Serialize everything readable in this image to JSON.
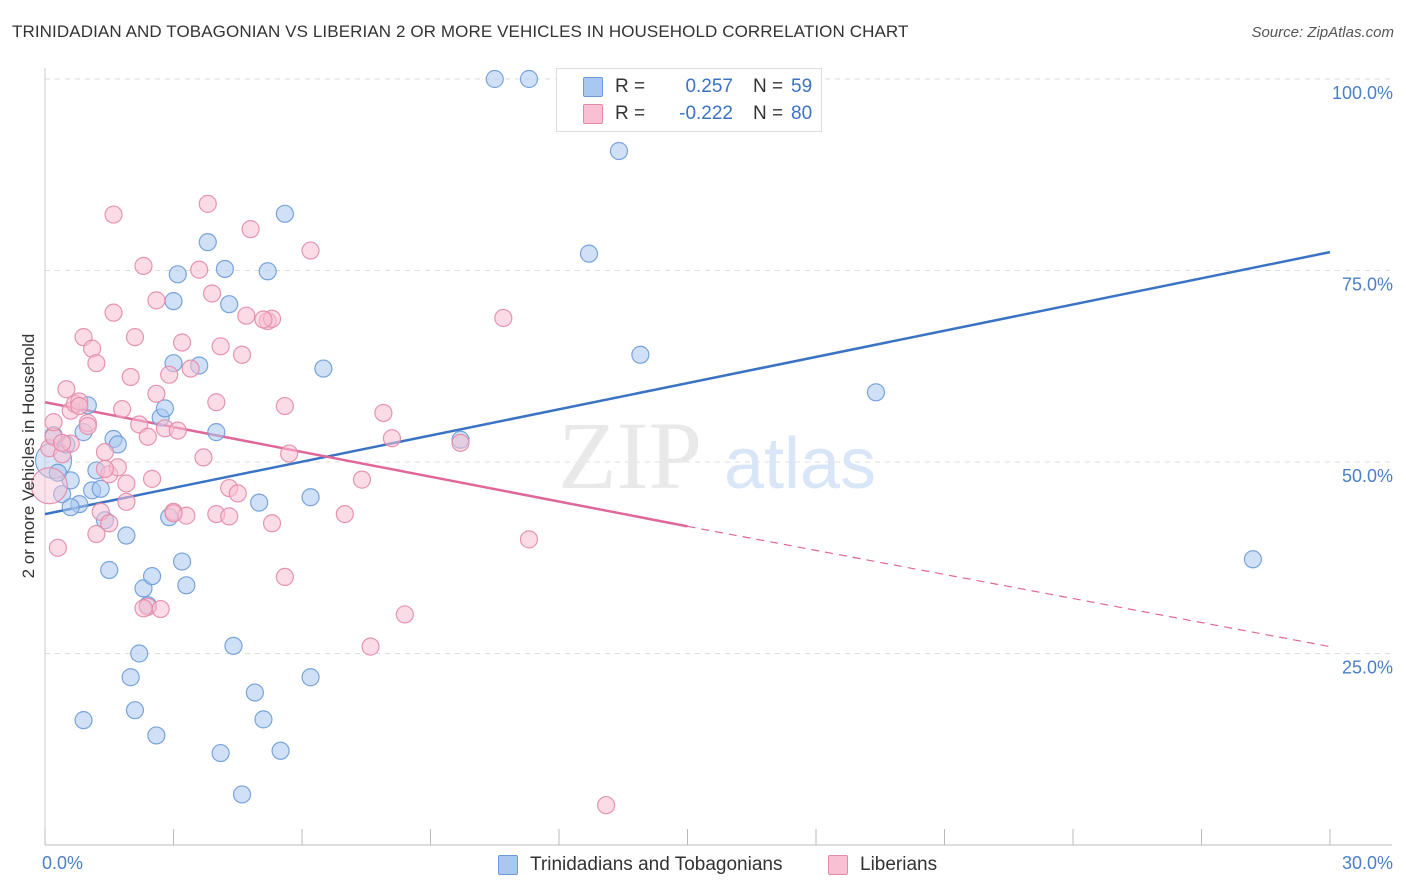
{
  "header": {
    "title": "TRINIDADIAN AND TOBAGONIAN VS LIBERIAN 2 OR MORE VEHICLES IN HOUSEHOLD CORRELATION CHART",
    "source": "Source: ZipAtlas.com"
  },
  "legend": {
    "r_label": "R =",
    "n_label": "N =",
    "rows": [
      {
        "r": "0.257",
        "n": "59",
        "color": "#a9c8f0",
        "border": "#6b9bd8"
      },
      {
        "r": "-0.222",
        "n": "80",
        "color": "#f8c0d2",
        "border": "#e48aa8"
      }
    ]
  },
  "watermark": {
    "zip": "ZIP",
    "atlas": "atlas"
  },
  "chart_data": {
    "type": "scatter",
    "title": "TRINIDADIAN AND TOBAGONIAN VS LIBERIAN 2 OR MORE VEHICLES IN HOUSEHOLD CORRELATION CHART",
    "xlabel": "",
    "ylabel": "2 or more Vehicles in Household",
    "xlim": [
      0,
      30
    ],
    "ylim": [
      0,
      100
    ],
    "x_tick_labels": [
      "0.0%",
      "30.0%"
    ],
    "y_ticks": [
      25,
      50,
      75,
      100
    ],
    "y_tick_labels": [
      "25.0%",
      "50.0%",
      "75.0%",
      "100.0%"
    ],
    "grid": true,
    "series": [
      {
        "name": "Trinidadians and Tobagonians",
        "color": "#a9c8f0",
        "edge": "#6b9bd8",
        "trend": {
          "x": [
            0,
            30
          ],
          "y": [
            43.2,
            77.4
          ],
          "color": "#3a73c4"
        },
        "points": [
          [
            0.2,
            50.2
          ],
          [
            0.2,
            53.5
          ],
          [
            0.4,
            45.8
          ],
          [
            0.5,
            52.3
          ],
          [
            0.6,
            47.6
          ],
          [
            0.8,
            44.5
          ],
          [
            0.9,
            53.9
          ],
          [
            1.0,
            57.4
          ],
          [
            1.1,
            46.3
          ],
          [
            1.2,
            48.9
          ],
          [
            1.3,
            46.5
          ],
          [
            1.4,
            42.4
          ],
          [
            1.5,
            35.9
          ],
          [
            1.6,
            53.0
          ],
          [
            1.7,
            52.3
          ],
          [
            1.9,
            40.4
          ],
          [
            2.0,
            21.9
          ],
          [
            2.1,
            17.6
          ],
          [
            2.2,
            25.0
          ],
          [
            2.3,
            33.5
          ],
          [
            2.4,
            31.3
          ],
          [
            2.5,
            35.1
          ],
          [
            2.6,
            14.3
          ],
          [
            2.7,
            55.8
          ],
          [
            2.8,
            57.0
          ],
          [
            2.9,
            42.8
          ],
          [
            3.0,
            62.9
          ],
          [
            3.0,
            71.0
          ],
          [
            3.1,
            74.5
          ],
          [
            3.2,
            37.0
          ],
          [
            3.3,
            33.9
          ],
          [
            3.6,
            62.6
          ],
          [
            3.8,
            78.7
          ],
          [
            4.0,
            53.9
          ],
          [
            4.1,
            12.0
          ],
          [
            4.2,
            75.2
          ],
          [
            4.3,
            70.6
          ],
          [
            4.4,
            26.0
          ],
          [
            4.6,
            6.6
          ],
          [
            4.9,
            19.9
          ],
          [
            5.0,
            44.7
          ],
          [
            5.1,
            16.4
          ],
          [
            5.2,
            74.9
          ],
          [
            5.5,
            12.3
          ],
          [
            5.6,
            82.4
          ],
          [
            6.2,
            45.4
          ],
          [
            6.2,
            21.9
          ],
          [
            6.5,
            62.2
          ],
          [
            9.7,
            52.9
          ],
          [
            10.5,
            100.0
          ],
          [
            11.3,
            100.0
          ],
          [
            12.7,
            77.2
          ],
          [
            13.4,
            90.6
          ],
          [
            13.9,
            64.0
          ],
          [
            19.4,
            59.1
          ],
          [
            28.2,
            37.3
          ],
          [
            0.9,
            16.3
          ],
          [
            0.3,
            48.6
          ],
          [
            0.6,
            44.1
          ]
        ],
        "sizes": [
          "large",
          "normal",
          "normal",
          "normal",
          "normal",
          "normal",
          "normal",
          "normal",
          "normal",
          "normal",
          "normal",
          "normal",
          "normal",
          "normal",
          "normal",
          "normal",
          "normal",
          "normal",
          "normal",
          "normal",
          "normal",
          "normal",
          "normal",
          "normal",
          "normal",
          "normal",
          "normal",
          "normal",
          "normal",
          "normal",
          "normal",
          "normal",
          "normal",
          "normal",
          "normal",
          "normal",
          "normal",
          "normal",
          "normal",
          "normal",
          "normal",
          "normal",
          "normal",
          "normal",
          "normal",
          "normal",
          "normal",
          "normal",
          "normal",
          "normal",
          "normal",
          "normal",
          "normal",
          "normal",
          "normal",
          "normal",
          "normal",
          "normal",
          "normal"
        ]
      },
      {
        "name": "Liberians",
        "color": "#f8c0d2",
        "edge": "#e48aa8",
        "trend": {
          "x": [
            0,
            15
          ],
          "y": [
            57.8,
            41.6
          ],
          "dashed_to": [
            30,
            25.9
          ],
          "color": "#e0679a"
        },
        "points": [
          [
            0.1,
            46.9
          ],
          [
            0.1,
            51.8
          ],
          [
            0.2,
            53.3
          ],
          [
            0.3,
            38.8
          ],
          [
            0.4,
            51.0
          ],
          [
            0.5,
            59.5
          ],
          [
            0.6,
            52.4
          ],
          [
            0.6,
            56.7
          ],
          [
            0.7,
            57.6
          ],
          [
            0.8,
            57.9
          ],
          [
            0.9,
            66.3
          ],
          [
            1.0,
            55.1
          ],
          [
            1.1,
            64.8
          ],
          [
            1.2,
            62.9
          ],
          [
            1.2,
            40.6
          ],
          [
            1.3,
            43.5
          ],
          [
            1.4,
            51.3
          ],
          [
            1.5,
            48.4
          ],
          [
            1.5,
            42.0
          ],
          [
            1.6,
            82.3
          ],
          [
            1.6,
            69.5
          ],
          [
            1.7,
            49.3
          ],
          [
            1.8,
            56.9
          ],
          [
            1.9,
            47.2
          ],
          [
            1.9,
            44.8
          ],
          [
            2.0,
            61.1
          ],
          [
            2.1,
            66.3
          ],
          [
            2.2,
            54.9
          ],
          [
            2.3,
            75.6
          ],
          [
            2.4,
            53.3
          ],
          [
            2.4,
            31.1
          ],
          [
            2.5,
            47.8
          ],
          [
            2.6,
            71.1
          ],
          [
            2.6,
            58.9
          ],
          [
            2.7,
            30.8
          ],
          [
            2.8,
            54.4
          ],
          [
            2.9,
            61.4
          ],
          [
            3.0,
            43.5
          ],
          [
            3.1,
            54.1
          ],
          [
            3.2,
            65.6
          ],
          [
            3.3,
            43.0
          ],
          [
            3.4,
            62.2
          ],
          [
            3.6,
            75.1
          ],
          [
            3.7,
            50.6
          ],
          [
            3.8,
            83.7
          ],
          [
            3.9,
            72.0
          ],
          [
            4.0,
            57.8
          ],
          [
            4.0,
            43.2
          ],
          [
            4.1,
            65.1
          ],
          [
            4.3,
            46.6
          ],
          [
            4.3,
            42.9
          ],
          [
            4.5,
            45.9
          ],
          [
            4.6,
            64.0
          ],
          [
            4.7,
            69.1
          ],
          [
            4.8,
            80.4
          ],
          [
            5.2,
            68.4
          ],
          [
            5.3,
            68.7
          ],
          [
            5.3,
            42.0
          ],
          [
            5.6,
            57.3
          ],
          [
            5.6,
            35.0
          ],
          [
            5.7,
            51.1
          ],
          [
            6.2,
            77.6
          ],
          [
            7.0,
            43.2
          ],
          [
            7.4,
            47.7
          ],
          [
            7.6,
            25.9
          ],
          [
            7.9,
            56.4
          ],
          [
            8.1,
            53.1
          ],
          [
            8.4,
            30.1
          ],
          [
            9.7,
            52.5
          ],
          [
            10.7,
            68.8
          ],
          [
            11.3,
            39.9
          ],
          [
            13.1,
            5.2
          ],
          [
            0.2,
            55.2
          ],
          [
            0.4,
            52.5
          ],
          [
            1.0,
            54.7
          ],
          [
            0.8,
            57.3
          ],
          [
            1.4,
            49.1
          ],
          [
            3.0,
            43.3
          ],
          [
            2.3,
            30.9
          ],
          [
            5.1,
            68.6
          ]
        ],
        "sizes": [
          "large",
          "normal",
          "normal",
          "normal",
          "normal",
          "normal",
          "normal",
          "normal",
          "normal",
          "normal",
          "normal",
          "normal",
          "normal",
          "normal",
          "normal",
          "normal",
          "normal",
          "normal",
          "normal",
          "normal",
          "normal",
          "normal",
          "normal",
          "normal",
          "normal",
          "normal",
          "normal",
          "normal",
          "normal",
          "normal",
          "normal",
          "normal",
          "normal",
          "normal",
          "normal",
          "normal",
          "normal",
          "normal",
          "normal",
          "normal",
          "normal",
          "normal",
          "normal",
          "normal",
          "normal",
          "normal",
          "normal",
          "normal",
          "normal",
          "normal",
          "normal",
          "normal",
          "normal",
          "normal",
          "normal",
          "normal",
          "normal",
          "normal",
          "normal",
          "normal",
          "normal",
          "normal",
          "normal",
          "normal",
          "normal",
          "normal",
          "normal",
          "normal",
          "normal",
          "normal",
          "normal",
          "normal",
          "normal",
          "normal",
          "normal",
          "normal",
          "normal",
          "normal",
          "normal",
          "normal"
        ]
      }
    ]
  }
}
